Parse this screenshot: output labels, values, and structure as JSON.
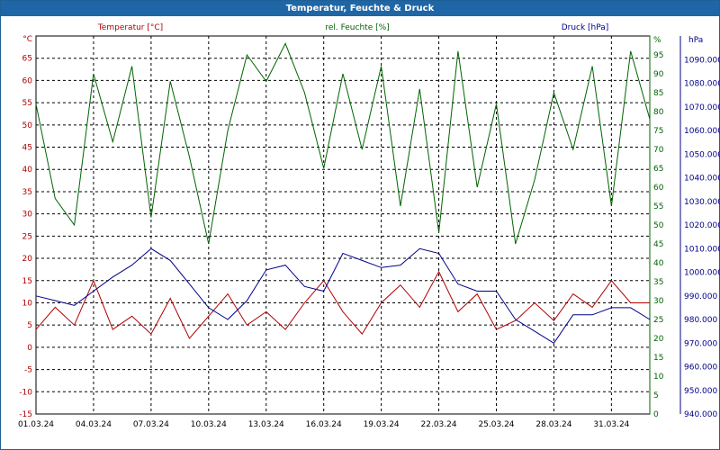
{
  "window": {
    "title": "Temperatur, Feuchte & Druck"
  },
  "colors": {
    "temperature": "#b00000",
    "humidity": "#006400",
    "pressure": "#00008b",
    "grid": "#000000",
    "titlebar": "#1f66a7"
  },
  "chart_data": {
    "type": "line",
    "title": "Temperatur, Feuchte & Druck",
    "x_range": [
      "01.03.24",
      "02.04.24"
    ],
    "x_ticks": [
      "01.03.24",
      "04.03.24",
      "07.03.24",
      "10.03.24",
      "13.03.24",
      "16.03.24",
      "19.03.24",
      "22.03.24",
      "25.03.24",
      "28.03.24",
      "31.03.24"
    ],
    "grid": true,
    "axes": {
      "temperature": {
        "unit": "°C",
        "ylim": [
          -15,
          70
        ],
        "ticks": [
          -15,
          -10,
          -5,
          0,
          5,
          10,
          15,
          20,
          25,
          30,
          35,
          40,
          45,
          50,
          55,
          60,
          65
        ]
      },
      "humidity": {
        "unit": "%",
        "ylim": [
          0,
          100
        ],
        "ticks": [
          0,
          5,
          10,
          15,
          20,
          25,
          30,
          35,
          40,
          45,
          50,
          55,
          60,
          65,
          70,
          75,
          80,
          85,
          90,
          95
        ]
      },
      "pressure": {
        "unit": "hPa",
        "ylim": [
          940,
          1100
        ],
        "ticks": [
          940,
          950,
          960,
          970,
          980,
          990,
          1000,
          1010,
          1020,
          1030,
          1040,
          1050,
          1060,
          1070,
          1080,
          1090
        ]
      }
    },
    "series": [
      {
        "name": "Temperatur [°C]",
        "axis": "temperature",
        "color": "#b00000",
        "x": [
          "01.03.24",
          "02.03.24",
          "03.03.24",
          "04.03.24",
          "05.03.24",
          "06.03.24",
          "07.03.24",
          "08.03.24",
          "09.03.24",
          "10.03.24",
          "11.03.24",
          "12.03.24",
          "13.03.24",
          "14.03.24",
          "15.03.24",
          "16.03.24",
          "17.03.24",
          "18.03.24",
          "19.03.24",
          "20.03.24",
          "21.03.24",
          "22.03.24",
          "23.03.24",
          "24.03.24",
          "25.03.24",
          "26.03.24",
          "27.03.24",
          "28.03.24",
          "29.03.24",
          "30.03.24",
          "31.03.24",
          "01.04.24",
          "02.04.24"
        ],
        "y": [
          4,
          9,
          5,
          15,
          4,
          7,
          3,
          11,
          2,
          7,
          12,
          5,
          8,
          4,
          10,
          15,
          8,
          3,
          10,
          14,
          9,
          17,
          8,
          12,
          4,
          6,
          10,
          6,
          12,
          9,
          15,
          10,
          10
        ]
      },
      {
        "name": "rel. Feuchte [%]",
        "axis": "humidity",
        "color": "#006400",
        "x": [
          "01.03.24",
          "02.03.24",
          "03.03.24",
          "04.03.24",
          "05.03.24",
          "06.03.24",
          "07.03.24",
          "08.03.24",
          "09.03.24",
          "10.03.24",
          "11.03.24",
          "12.03.24",
          "13.03.24",
          "14.03.24",
          "15.03.24",
          "16.03.24",
          "17.03.24",
          "18.03.24",
          "19.03.24",
          "20.03.24",
          "21.03.24",
          "22.03.24",
          "23.03.24",
          "24.03.24",
          "25.03.24",
          "26.03.24",
          "27.03.24",
          "28.03.24",
          "29.03.24",
          "30.03.24",
          "31.03.24",
          "01.04.24",
          "02.04.24"
        ],
        "y": [
          82,
          57,
          50,
          90,
          72,
          92,
          52,
          88,
          68,
          45,
          75,
          95,
          88,
          98,
          85,
          65,
          90,
          70,
          92,
          55,
          86,
          48,
          96,
          60,
          82,
          45,
          62,
          85,
          70,
          92,
          55,
          96,
          78
        ]
      },
      {
        "name": "Druck [hPa]",
        "axis": "pressure",
        "color": "#00008b",
        "x": [
          "01.03.24",
          "02.03.24",
          "03.03.24",
          "04.03.24",
          "05.03.24",
          "06.03.24",
          "07.03.24",
          "08.03.24",
          "09.03.24",
          "10.03.24",
          "11.03.24",
          "12.03.24",
          "13.03.24",
          "14.03.24",
          "15.03.24",
          "16.03.24",
          "17.03.24",
          "18.03.24",
          "19.03.24",
          "20.03.24",
          "21.03.24",
          "22.03.24",
          "23.03.24",
          "24.03.24",
          "25.03.24",
          "26.03.24",
          "27.03.24",
          "28.03.24",
          "29.03.24",
          "30.03.24",
          "31.03.24",
          "01.04.24",
          "02.04.24"
        ],
        "y": [
          990,
          988,
          986,
          992,
          998,
          1003,
          1010,
          1005,
          995,
          985,
          980,
          988,
          1001,
          1003,
          994,
          992,
          1008,
          1005,
          1002,
          1003,
          1010,
          1008,
          995,
          992,
          992,
          980,
          975,
          970,
          982,
          982,
          985,
          985,
          980
        ]
      }
    ]
  }
}
